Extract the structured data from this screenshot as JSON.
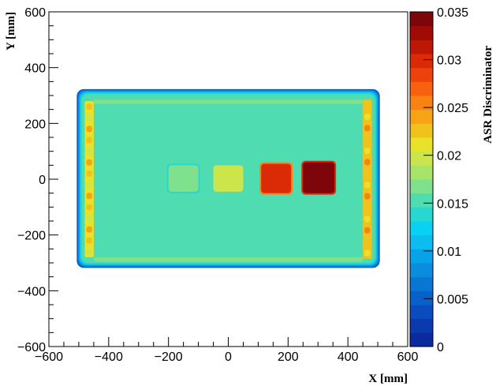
{
  "chart_data": {
    "type": "heatmap",
    "title": "",
    "xlabel": "X [mm]",
    "ylabel": "Y [mm]",
    "zlabel": "ASR Discriminator",
    "xlim": [
      -600,
      600
    ],
    "ylim": [
      -600,
      600
    ],
    "zlim": [
      0,
      0.035
    ],
    "x_ticks": [
      -600,
      -400,
      -200,
      0,
      200,
      400,
      600
    ],
    "y_ticks": [
      -600,
      -400,
      -200,
      0,
      200,
      400,
      600
    ],
    "z_ticks": [
      0,
      0.005,
      0.01,
      0.015,
      0.02,
      0.025,
      0.03,
      0.035
    ],
    "x_tick_labels": [
      "−600",
      "−400",
      "−200",
      "0",
      "200",
      "400",
      "600"
    ],
    "y_tick_labels": [
      "−600",
      "−400",
      "−200",
      "0",
      "200",
      "400",
      "600"
    ],
    "z_tick_labels": [
      "0",
      "0.005",
      "0.01",
      "0.015",
      "0.02",
      "0.025",
      "0.03",
      "0.035"
    ],
    "palette": [
      "#0a2a9e",
      "#0b3aaf",
      "#0a4cbf",
      "#0860c9",
      "#0a76d4",
      "#0a8cdf",
      "#06a3e8",
      "#0bbeef",
      "#08d2f3",
      "#27d8d2",
      "#4fdcb0",
      "#7fe08e",
      "#a6e46a",
      "#cbe54a",
      "#e8e22a",
      "#f0c21c",
      "#f6a316",
      "#f98312",
      "#f8620e",
      "#ee420b",
      "#da2a06",
      "#bd1705",
      "#a00b06",
      "#7e0509"
    ],
    "regions": [
      {
        "name": "sample-box",
        "x": [
          -490,
          490
        ],
        "y": [
          -300,
          305
        ],
        "value": 0.0148
      },
      {
        "name": "left-edge-band",
        "x": [
          -480,
          -450
        ],
        "y": [
          -280,
          280
        ],
        "value": 0.021
      },
      {
        "name": "right-edge-band",
        "x": [
          450,
          480
        ],
        "y": [
          -285,
          285
        ],
        "value": 0.022
      },
      {
        "name": "top-edge-band",
        "x": [
          -450,
          450
        ],
        "y": [
          270,
          285
        ],
        "value": 0.0172
      },
      {
        "name": "bottom-edge-band",
        "x": [
          -450,
          450
        ],
        "y": [
          -295,
          -280
        ],
        "value": 0.0172
      },
      {
        "name": "block-1",
        "x": [
          -200,
          -100
        ],
        "y": [
          -45,
          50
        ],
        "value": 0.0172
      },
      {
        "name": "block-2",
        "x": [
          -50,
          50
        ],
        "y": [
          -45,
          50
        ],
        "value": 0.0195
      },
      {
        "name": "block-3",
        "x": [
          110,
          210
        ],
        "y": [
          -50,
          55
        ],
        "value": 0.0295
      },
      {
        "name": "block-4",
        "x": [
          250,
          355
        ],
        "y": [
          -50,
          60
        ],
        "value": 0.0345
      }
    ]
  }
}
